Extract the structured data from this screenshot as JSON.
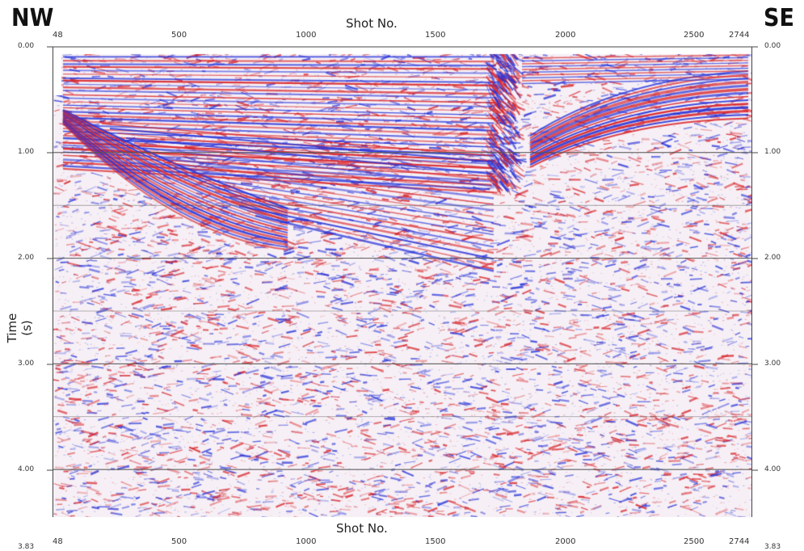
{
  "labels": {
    "left_direction": "NW",
    "right_direction": "SE",
    "top_axis_title": "Shot No.",
    "bottom_axis_title": "Shot No.",
    "y_axis_title": "Time (s)",
    "bottom_corner_left": "3.83",
    "bottom_corner_right": "3.83"
  },
  "axes": {
    "shot_ticks_top": [
      "48",
      "500",
      "1000",
      "1500",
      "2000",
      "2500",
      "2744"
    ],
    "shot_ticks_bottom": [
      "48",
      "500",
      "1000",
      "1500",
      "2000",
      "2500",
      "2744"
    ],
    "time_ticks_left": [
      "0.00",
      "1.00",
      "2.00",
      "3.00",
      "4.00"
    ],
    "time_ticks_right": [
      "0.00",
      "1.00",
      "2.00",
      "3.00",
      "4.00"
    ],
    "time_range_s": [
      0,
      4.45
    ],
    "shot_range": [
      48,
      2744
    ],
    "gridlines_s": [
      1.0,
      1.5,
      2.0,
      2.5,
      3.0,
      3.5,
      4.0
    ]
  },
  "colors": {
    "positive": "#d9252a",
    "negative": "#2632d9",
    "background": "#f6f0f6",
    "gridline": "#555555"
  }
}
